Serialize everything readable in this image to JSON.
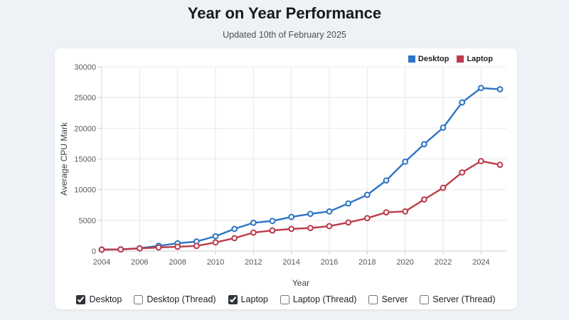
{
  "page": {
    "title": "Year on Year Performance",
    "subtitle": "Updated 10th of February 2025"
  },
  "colors": {
    "page_bg": "#eef1f5",
    "card_bg": "#ffffff",
    "grid": "#e6e7e9",
    "axis": "#c7cacd",
    "desktop": "#2d74c4",
    "laptop": "#bc3a4a"
  },
  "chart_data": {
    "type": "line",
    "title": "Year on Year Performance",
    "xlabel": "Year",
    "ylabel": "Average CPU Mark",
    "x": [
      2004,
      2005,
      2006,
      2007,
      2008,
      2009,
      2010,
      2011,
      2012,
      2013,
      2014,
      2015,
      2016,
      2017,
      2018,
      2019,
      2020,
      2021,
      2022,
      2023,
      2024,
      2025
    ],
    "series": [
      {
        "name": "Desktop",
        "color": "#2d74c4",
        "values": [
          250,
          280,
          450,
          850,
          1250,
          1550,
          2400,
          3600,
          4600,
          4900,
          5550,
          6050,
          6450,
          7750,
          9150,
          11500,
          14550,
          17400,
          20100,
          24200,
          26550,
          26350
        ]
      },
      {
        "name": "Laptop",
        "color": "#bc3a4a",
        "values": [
          230,
          260,
          430,
          580,
          700,
          830,
          1400,
          2100,
          3000,
          3350,
          3600,
          3750,
          4050,
          4650,
          5350,
          6300,
          6450,
          8400,
          10300,
          12800,
          14650,
          14050
        ]
      }
    ],
    "xlim": [
      2004,
      2025
    ],
    "ylim": [
      0,
      30000
    ],
    "xticks": [
      2004,
      2006,
      2008,
      2010,
      2012,
      2014,
      2016,
      2018,
      2020,
      2022,
      2024
    ],
    "yticks": [
      0,
      5000,
      10000,
      15000,
      20000,
      25000,
      30000
    ],
    "grid": true,
    "marker": "circle",
    "legend_position": "top-right"
  },
  "legend": {
    "items": [
      {
        "label": "Desktop",
        "color": "#2d74c4"
      },
      {
        "label": "Laptop",
        "color": "#bc3a4a"
      }
    ]
  },
  "controls": {
    "checkboxes": [
      {
        "label": "Desktop",
        "checked": true
      },
      {
        "label": "Desktop (Thread)",
        "checked": false
      },
      {
        "label": "Laptop",
        "checked": true
      },
      {
        "label": "Laptop (Thread)",
        "checked": false
      },
      {
        "label": "Server",
        "checked": false
      },
      {
        "label": "Server (Thread)",
        "checked": false
      }
    ]
  }
}
